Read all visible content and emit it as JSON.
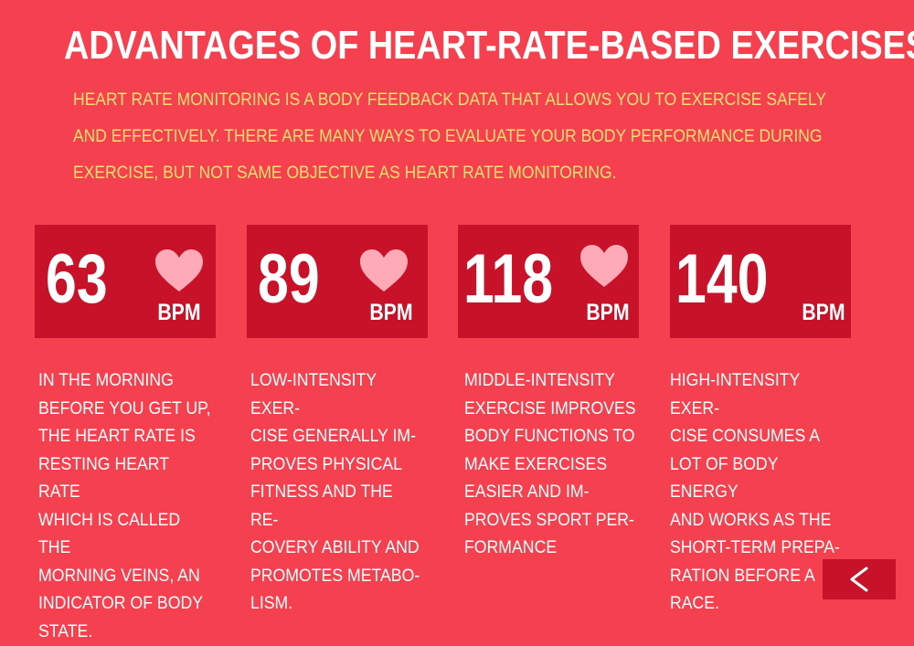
{
  "title": "ADVANTAGES OF HEART-RATE-BASED EXERCISES",
  "intro": "HEART RATE MONITORING IS A BODY FEEDBACK DATA THAT ALLOWS YOU TO EXERCISE SAFELY AND EFFECTIVELY. THERE ARE MANY WAYS TO EVALUATE YOUR BODY PERFORMANCE DURING EXERCISE, BUT NOT SAME OBJECTIVE AS HEART RATE MONITORING.",
  "colors": {
    "background": "#f5414f",
    "card": "#c8122a",
    "intro_text": "#f7e16e",
    "heart": "#ffaab6",
    "text": "#ffffff"
  },
  "cards": [
    {
      "value": "63",
      "unit": "BPM",
      "icon": "heart-icon",
      "description": "IN THE MORNING\nBEFORE YOU GET UP,\nTHE HEART RATE IS\nRESTING HEART RATE\nWHICH IS CALLED THE\nMORNING VEINS, AN\nINDICATOR OF BODY\nSTATE."
    },
    {
      "value": "89",
      "unit": "BPM",
      "icon": "heart-icon",
      "description": "LOW-INTENSITY EXER-\nCISE GENERALLY IM-\nPROVES PHYSICAL\nFITNESS AND THE RE-\nCOVERY ABILITY AND\nPROMOTES METABO-\nLISM."
    },
    {
      "value": "118",
      "unit": "BPM",
      "icon": "heart-icon",
      "description": "MIDDLE-INTENSITY\nEXERCISE IMPROVES\nBODY FUNCTIONS TO\nMAKE EXERCISES\nEASIER AND IM-\nPROVES SPORT PER-\nFORMANCE"
    },
    {
      "value": "140",
      "unit": "BPM",
      "description": "HIGH-INTENSITY EXER-\nCISE CONSUMES A\nLOT OF BODY ENERGY\nAND WORKS AS THE\nSHORT-TERM PREPA-\nRATION BEFORE A\nRACE."
    }
  ],
  "back_button": {
    "icon": "chevron-left-icon"
  }
}
